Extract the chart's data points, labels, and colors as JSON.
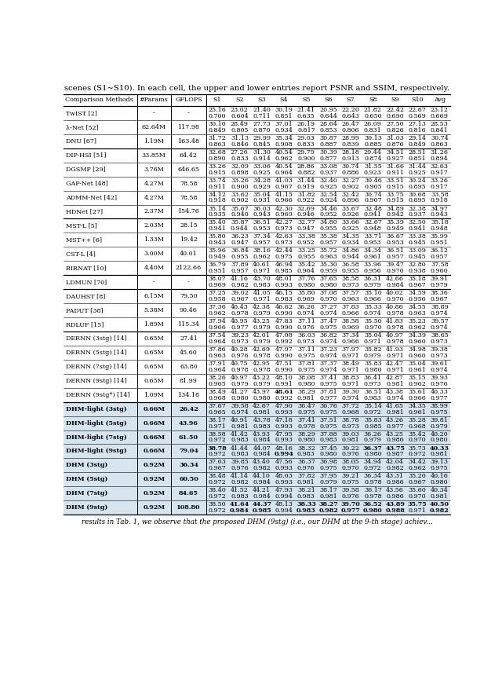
{
  "title": "scenes (S1~S10). In each cell, the upper and lower entries report PSNR and SSIM, respectively.",
  "rows": [
    {
      "method": "TwIST [2]",
      "params": "-",
      "gflops": "-",
      "psnr": [
        "25.16",
        "23.02",
        "21.40",
        "30.19",
        "21.41",
        "20.95",
        "22.20",
        "21.82",
        "22.42",
        "22.67",
        "23.12"
      ],
      "ssim": [
        "0.700",
        "0.604",
        "0.711",
        "0.851",
        "0.635",
        "0.644",
        "0.643",
        "0.650",
        "0.690",
        "0.569",
        "0.669"
      ],
      "bold_psnr": [],
      "bold_ssim": [],
      "dhm": false,
      "thick_below": false
    },
    {
      "method": "λ-Net [52]",
      "params": "62.64M",
      "gflops": "117.98",
      "psnr": [
        "30.10",
        "28.49",
        "27.73",
        "37.01",
        "26.19",
        "28.64",
        "26.47",
        "26.09",
        "27.50",
        "27.13",
        "28.53"
      ],
      "ssim": [
        "0.849",
        "0.805",
        "0.870",
        "0.934",
        "0.817",
        "0.853",
        "0.806",
        "0.831",
        "0.826",
        "0.816",
        "0.841"
      ],
      "bold_psnr": [],
      "bold_ssim": [],
      "dhm": false,
      "thick_below": false
    },
    {
      "method": "DNU [67]",
      "params": "1.19M",
      "gflops": "163.48",
      "psnr": [
        "31.72",
        "31.13",
        "29.99",
        "35.34",
        "29.03",
        "30.87",
        "28.99",
        "30.13",
        "31.03",
        "29.14",
        "30.74"
      ],
      "ssim": [
        "0.863",
        "0.846",
        "0.845",
        "0.908",
        "0.833",
        "0.887",
        "0.839",
        "0.885",
        "0.876",
        "0.849",
        "0.863"
      ],
      "bold_psnr": [],
      "bold_ssim": [],
      "dhm": false,
      "thick_below": true
    },
    {
      "method": "DIP-HSI [51]",
      "params": "33.85M",
      "gflops": "64.42",
      "psnr": [
        "32.68",
        "27.26",
        "31.30",
        "40.54",
        "29.79",
        "30.39",
        "28.18",
        "29.44",
        "34.51",
        "28.51",
        "31.26"
      ],
      "ssim": [
        "0.890",
        "0.833",
        "0.914",
        "0.962",
        "0.900",
        "0.877",
        "0.913",
        "0.874",
        "0.927",
        "0.851",
        "0.894"
      ],
      "bold_psnr": [],
      "bold_ssim": [],
      "dhm": false,
      "thick_below": false
    },
    {
      "method": "DGSMP [29]",
      "params": "3.76M",
      "gflops": "646.65",
      "psnr": [
        "33.26",
        "32.09",
        "33.06",
        "40.54",
        "28.86",
        "33.08",
        "30.74",
        "31.55",
        "31.66",
        "31.44",
        "32.63"
      ],
      "ssim": [
        "0.915",
        "0.898",
        "0.925",
        "0.964",
        "0.882",
        "0.937",
        "0.886",
        "0.923",
        "0.911",
        "0.925",
        "0.917"
      ],
      "bold_psnr": [],
      "bold_ssim": [],
      "dhm": false,
      "thick_below": false
    },
    {
      "method": "GAP-Net [48]",
      "params": "4.27M",
      "gflops": "78.58",
      "psnr": [
        "33.74",
        "33.26",
        "34.28",
        "41.03",
        "31.44",
        "32.40",
        "32.27",
        "30.46",
        "33.51",
        "30.24",
        "33.26"
      ],
      "ssim": [
        "0.911",
        "0.900",
        "0.929",
        "0.967",
        "0.919",
        "0.925",
        "0.902",
        "0.905",
        "0.915",
        "0.895",
        "0.917"
      ],
      "bold_psnr": [],
      "bold_ssim": [],
      "dhm": false,
      "thick_below": false
    },
    {
      "method": "ADMM-Net [42]",
      "params": "4.27M",
      "gflops": "78.58",
      "psnr": [
        "34.12",
        "33.62",
        "35.04",
        "41.15",
        "31.82",
        "32.54",
        "32.42",
        "30.74",
        "33.75",
        "30.68",
        "33.58"
      ],
      "ssim": [
        "0.918",
        "0.902",
        "0.931",
        "0.966",
        "0.922",
        "0.924",
        "0.896",
        "0.907",
        "0.915",
        "0.895",
        "0.918"
      ],
      "bold_psnr": [],
      "bold_ssim": [],
      "dhm": false,
      "thick_below": false
    },
    {
      "method": "HDNet [27]",
      "params": "2.37M",
      "gflops": "154.76",
      "psnr": [
        "35.14",
        "35.67",
        "36.03",
        "42.30",
        "32.69",
        "34.46",
        "33.67",
        "32.48",
        "34.89",
        "32.38",
        "34.97"
      ],
      "ssim": [
        "0.935",
        "0.940",
        "0.943",
        "0.969",
        "0.946",
        "0.952",
        "0.926",
        "0.941",
        "0.942",
        "0.937",
        "0.943"
      ],
      "bold_psnr": [],
      "bold_ssim": [],
      "dhm": false,
      "thick_below": true
    },
    {
      "method": "MST-L [5]",
      "params": "2.03M",
      "gflops": "28.15",
      "psnr": [
        "35.40",
        "35.87",
        "36.51",
        "42.27",
        "32.77",
        "34.80",
        "33.66",
        "32.67",
        "35.39",
        "32.50",
        "35.18"
      ],
      "ssim": [
        "0.941",
        "0.944",
        "0.953",
        "0.973",
        "0.947",
        "0.955",
        "0.925",
        "0.948",
        "0.949",
        "0.941",
        "0.948"
      ],
      "bold_psnr": [],
      "bold_ssim": [],
      "dhm": false,
      "thick_below": false
    },
    {
      "method": "MST++ [6]",
      "params": "1.33M",
      "gflops": "19.42",
      "psnr": [
        "35.80",
        "36.23",
        "37.34",
        "42.63",
        "33.38",
        "35.38",
        "34.35",
        "33.71",
        "36.67",
        "33.38",
        "35.99"
      ],
      "ssim": [
        "0.943",
        "0.947",
        "0.957",
        "0.973",
        "0.952",
        "0.957",
        "0.934",
        "0.953",
        "0.953",
        "0.945",
        "0.951"
      ],
      "bold_psnr": [],
      "bold_ssim": [],
      "dhm": false,
      "thick_below": false
    },
    {
      "method": "CST-L [4]",
      "params": "3.00M",
      "gflops": "40.01",
      "psnr": [
        "35.96",
        "36.84",
        "38.16",
        "42.44",
        "33.25",
        "35.72",
        "34.86",
        "34.34",
        "36.51",
        "33.09",
        "36.12"
      ],
      "ssim": [
        "0.949",
        "0.955",
        "0.962",
        "0.975",
        "0.955",
        "0.963",
        "0.944",
        "0.961",
        "0.957",
        "0.945",
        "0.957"
      ],
      "bold_psnr": [],
      "bold_ssim": [],
      "dhm": false,
      "thick_below": false
    },
    {
      "method": "BIRNAT [10]",
      "params": "4.40M",
      "gflops": "2122.66",
      "psnr": [
        "36.79",
        "37.89",
        "40.61",
        "46.94",
        "35.42",
        "35.30",
        "36.58",
        "33.96",
        "39.47",
        "32.80",
        "37.58"
      ],
      "ssim": [
        "0.951",
        "0.957",
        "0.971",
        "0.985",
        "0.964",
        "0.959",
        "0.955",
        "0.956",
        "0.970",
        "0.938",
        "0.960"
      ],
      "bold_psnr": [],
      "bold_ssim": [],
      "dhm": false,
      "thick_below": true
    },
    {
      "method": "LDMUN [70]",
      "params": "-",
      "gflops": "-",
      "psnr": [
        "38.07",
        "41.16",
        "43.70",
        "48.01",
        "37.76",
        "37.65",
        "38.58",
        "36.31",
        "42.66",
        "35.18",
        "39.91"
      ],
      "ssim": [
        "0.969",
        "0.982",
        "0.983",
        "0.993",
        "0.980",
        "0.980",
        "0.973",
        "0.979",
        "0.984",
        "0.967",
        "0.979"
      ],
      "bold_psnr": [],
      "bold_ssim": [],
      "dhm": false,
      "thick_below": true
    },
    {
      "method": "DAUHST [8]",
      "params": "6.15M",
      "gflops": "79.50",
      "psnr": [
        "37.25",
        "39.02",
        "41.05",
        "46.15",
        "35.80",
        "37.08",
        "37.57",
        "35.10",
        "40.02",
        "34.59",
        "38.36"
      ],
      "ssim": [
        "0.958",
        "0.967",
        "0.971",
        "0.983",
        "0.969",
        "0.970",
        "0.963",
        "0.966",
        "0.970",
        "0.956",
        "0.967"
      ],
      "bold_psnr": [],
      "bold_ssim": [],
      "dhm": false,
      "thick_below": false
    },
    {
      "method": "PADUT [38]",
      "params": "5.38M",
      "gflops": "90.46",
      "psnr": [
        "37.36",
        "40.43",
        "42.38",
        "46.62",
        "36.26",
        "37.27",
        "37.83",
        "35.33",
        "40.86",
        "34.55",
        "38.89"
      ],
      "ssim": [
        "0.962",
        "0.978",
        "0.979",
        "0.990",
        "0.974",
        "0.974",
        "0.966",
        "0.974",
        "0.978",
        "0.963",
        "0.974"
      ],
      "bold_psnr": [],
      "bold_ssim": [],
      "dhm": false,
      "thick_below": false
    },
    {
      "method": "RDLUF [15]",
      "params": "1.89M",
      "gflops": "115.34",
      "psnr": [
        "37.94",
        "40.95",
        "43.25",
        "47.83",
        "37.11",
        "37.47",
        "38.58",
        "35.50",
        "41.83",
        "35.23",
        "39.57"
      ],
      "ssim": [
        "0.966",
        "0.977",
        "0.979",
        "0.990",
        "0.976",
        "0.975",
        "0.969",
        "0.970",
        "0.978",
        "0.962",
        "0.974"
      ],
      "bold_psnr": [],
      "bold_ssim": [],
      "dhm": false,
      "thick_below": true
    },
    {
      "method": "DERNN (3stg) [14]",
      "params": "0.65M",
      "gflops": "27.41",
      "psnr": [
        "37.54",
        "39.23",
        "42.01",
        "47.08",
        "36.03",
        "36.82",
        "37.34",
        "35.04",
        "40.97",
        "34.39",
        "38.65"
      ],
      "ssim": [
        "0.964",
        "0.973",
        "0.979",
        "0.992",
        "0.973",
        "0.974",
        "0.966",
        "0.971",
        "0.978",
        "0.960",
        "0.973"
      ],
      "bold_psnr": [],
      "bold_ssim": [],
      "dhm": false,
      "thick_below": false
    },
    {
      "method": "DERNN (5stg) [14]",
      "params": "0.65M",
      "gflops": "45.60",
      "psnr": [
        "37.86",
        "40.28",
        "42.69",
        "47.97",
        "37.11",
        "37.23",
        "37.97",
        "35.82",
        "41.93",
        "34.98",
        "39.38"
      ],
      "ssim": [
        "0.963",
        "0.976",
        "0.978",
        "0.990",
        "0.975",
        "0.974",
        "0.971",
        "0.979",
        "0.971",
        "0.960",
        "0.973"
      ],
      "bold_psnr": [],
      "bold_ssim": [],
      "dhm": false,
      "thick_below": false
    },
    {
      "method": "DERNN (7stg) [14]",
      "params": "0.65M",
      "gflops": "63.80",
      "psnr": [
        "37.91",
        "40.75",
        "42.95",
        "47.51",
        "37.81",
        "37.37",
        "38.49",
        "35.83",
        "42.47",
        "35.04",
        "39.61"
      ],
      "ssim": [
        "0.964",
        "0.978",
        "0.978",
        "0.990",
        "0.975",
        "0.974",
        "0.971",
        "0.980",
        "0.971",
        "0.961",
        "0.974"
      ],
      "bold_psnr": [],
      "bold_ssim": [],
      "dhm": false,
      "thick_below": false
    },
    {
      "method": "DERNN (9stg) [14]",
      "params": "0.65M",
      "gflops": "81.99",
      "psnr": [
        "38.26",
        "40.97",
        "43.22",
        "48.10",
        "38.08",
        "37.41",
        "38.83",
        "36.41",
        "42.87",
        "35.15",
        "39.93"
      ],
      "ssim": [
        "0.965",
        "0.979",
        "0.979",
        "0.991",
        "0.980",
        "0.975",
        "0.971",
        "0.973",
        "0.981",
        "0.962",
        "0.976"
      ],
      "bold_psnr": [],
      "bold_ssim": [],
      "dhm": false,
      "thick_below": false
    },
    {
      "method": "DERNN (9stg*) [14]",
      "params": "1.09M",
      "gflops": "134.18",
      "psnr": [
        "38.49",
        "41.27",
        "43.97",
        "48.61",
        "38.29",
        "37.81",
        "39.30",
        "36.51",
        "43.38",
        "35.61",
        "40.33"
      ],
      "ssim": [
        "0.968",
        "0.980",
        "0.980",
        "0.992",
        "0.981",
        "0.977",
        "0.974",
        "0.983",
        "0.974",
        "0.966",
        "0.977"
      ],
      "bold_psnr": [
        3
      ],
      "bold_ssim": [],
      "dhm": false,
      "thick_below": true
    },
    {
      "method": "DHM-light (3stg)",
      "params": "0.66M",
      "gflops": "26.42",
      "psnr": [
        "37.67",
        "39.58",
        "42.67",
        "47.90",
        "36.47",
        "36.76",
        "37.72",
        "35.14",
        "41.65",
        "34.35",
        "38.99"
      ],
      "ssim": [
        "0.965",
        "0.974",
        "0.981",
        "0.993",
        "0.975",
        "0.975",
        "0.968",
        "0.972",
        "0.981",
        "0.961",
        "0.975"
      ],
      "bold_psnr": [],
      "bold_ssim": [],
      "dhm": true,
      "thick_below": false
    },
    {
      "method": "DHM-light (5stg)",
      "params": "0.66M",
      "gflops": "43.96",
      "psnr": [
        "38.17",
        "40.91",
        "43.78",
        "47.18",
        "37.41",
        "37.51",
        "38.78",
        "35.83",
        "43.26",
        "35.28",
        "39.81"
      ],
      "ssim": [
        "0.971",
        "0.981",
        "0.983",
        "0.993",
        "0.978",
        "0.975",
        "0.973",
        "0.985",
        "0.977",
        "0.968",
        "0.979"
      ],
      "bold_psnr": [],
      "bold_ssim": [],
      "dhm": true,
      "thick_below": false
    },
    {
      "method": "DHM-light (7stg)",
      "params": "0.66M",
      "gflops": "61.50",
      "psnr": [
        "38.58",
        "41.42",
        "43.93",
        "47.95",
        "38.29",
        "37.88",
        "39.03",
        "36.26",
        "43.25",
        "35.42",
        "40.20"
      ],
      "ssim": [
        "0.972",
        "0.983",
        "0.984",
        "0.993",
        "0.980",
        "0.983",
        "0.981",
        "0.979",
        "0.986",
        "0.970",
        "0.980"
      ],
      "bold_psnr": [],
      "bold_ssim": [],
      "dhm": true,
      "thick_below": false
    },
    {
      "method": "DHM-light (9stg)",
      "params": "0.66M",
      "gflops": "79.04",
      "psnr": [
        "38.78",
        "41.44",
        "44.07",
        "48.16",
        "38.32",
        "37.45",
        "39.22",
        "36.37",
        "43.75",
        "35.73",
        "40.33"
      ],
      "ssim": [
        "0.972",
        "0.983",
        "0.984",
        "0.994",
        "0.983",
        "0.980",
        "0.976",
        "0.980",
        "0.987",
        "0.972",
        "0.981"
      ],
      "bold_psnr": [
        0,
        7,
        8,
        10
      ],
      "bold_ssim": [
        3
      ],
      "dhm": true,
      "thick_below": false
    },
    {
      "method": "DHM (3stg)",
      "params": "0.92M",
      "gflops": "36.34",
      "psnr": [
        "37.63",
        "39.85",
        "43.40",
        "47.56",
        "36.37",
        "36.98",
        "38.05",
        "34.94",
        "42.04",
        "34.42",
        "39.13"
      ],
      "ssim": [
        "0.967",
        "0.976",
        "0.982",
        "0.993",
        "0.976",
        "0.975",
        "0.970",
        "0.972",
        "0.982",
        "0.962",
        "0.975"
      ],
      "bold_psnr": [],
      "bold_ssim": [],
      "dhm": true,
      "thick_below": false
    },
    {
      "method": "DHM (5stg)",
      "params": "0.92M",
      "gflops": "60.50",
      "psnr": [
        "38.48",
        "41.14",
        "44.10",
        "48.03",
        "37.82",
        "37.95",
        "39.21",
        "36.34",
        "43.31",
        "35.20",
        "40.16"
      ],
      "ssim": [
        "0.972",
        "0.982",
        "0.984",
        "0.993",
        "0.981",
        "0.979",
        "0.975",
        "0.978",
        "0.986",
        "0.967",
        "0.980"
      ],
      "bold_psnr": [],
      "bold_ssim": [],
      "dhm": true,
      "thick_below": false
    },
    {
      "method": "DHM (7stg)",
      "params": "0.92M",
      "gflops": "84.65",
      "psnr": [
        "38.40",
        "41.52",
        "44.21",
        "47.93",
        "38.21",
        "38.17",
        "39.58",
        "36.17",
        "43.56",
        "35.60",
        "40.34"
      ],
      "ssim": [
        "0.972",
        "0.983",
        "0.984",
        "0.994",
        "0.983",
        "0.981",
        "0.976",
        "0.978",
        "0.986",
        "0.970",
        "0.981"
      ],
      "bold_psnr": [],
      "bold_ssim": [],
      "dhm": true,
      "thick_below": false
    },
    {
      "method": "DHM (9stg)",
      "params": "0.92M",
      "gflops": "108.80",
      "psnr": [
        "38.50",
        "41.64",
        "44.37",
        "48.13",
        "38.33",
        "38.27",
        "39.70",
        "36.52",
        "43.89",
        "35.75",
        "40.50"
      ],
      "ssim": [
        "0.972",
        "0.984",
        "0.985",
        "0.994",
        "0.983",
        "0.982",
        "0.977",
        "0.980",
        "0.988",
        "0.971",
        "0.982"
      ],
      "bold_psnr": [
        1,
        2,
        4,
        5,
        6,
        7,
        8,
        9,
        10
      ],
      "bold_ssim": [
        1,
        2,
        4,
        5,
        6,
        7,
        8,
        10
      ],
      "dhm": true,
      "thick_below": false
    }
  ]
}
